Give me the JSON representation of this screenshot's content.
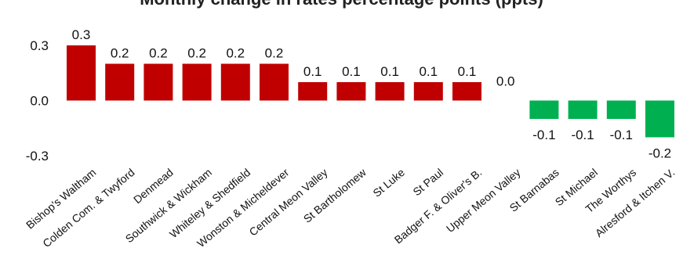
{
  "chart_data": {
    "type": "bar",
    "title": "Monthly change in rates percentage points (ppts)",
    "xlabel": "",
    "ylabel": "",
    "ylim": [
      -0.3,
      0.3
    ],
    "yticks": [
      "0.3",
      "0.0",
      "-0.3"
    ],
    "grid": false,
    "legend": "none",
    "categories": [
      "Bishop's Waltham",
      "Colden Com. & Twyford",
      "Denmead",
      "Southwick & Wickham",
      "Whiteley & Shedfield",
      "Wonston & Micheldever",
      "Central Meon Valley",
      "St Bartholomew",
      "St Luke",
      "St Paul",
      "Badger F. & Oliver's B.",
      "Upper Meon Valley",
      "St Barnabas",
      "St Michael",
      "The Worthys",
      "Alresford & Itchen V."
    ],
    "values": [
      0.3,
      0.2,
      0.2,
      0.2,
      0.2,
      0.2,
      0.1,
      0.1,
      0.1,
      0.1,
      0.1,
      0.0,
      -0.1,
      -0.1,
      -0.1,
      -0.2
    ],
    "data_labels": [
      "0.3",
      "0.2",
      "0.2",
      "0.2",
      "0.2",
      "0.2",
      "0.1",
      "0.1",
      "0.1",
      "0.1",
      "0.1",
      "0.0",
      "-0.1",
      "-0.1",
      "-0.1",
      "-0.2"
    ],
    "colors": {
      "positive": "#c00000",
      "negative": "#00b050"
    }
  }
}
